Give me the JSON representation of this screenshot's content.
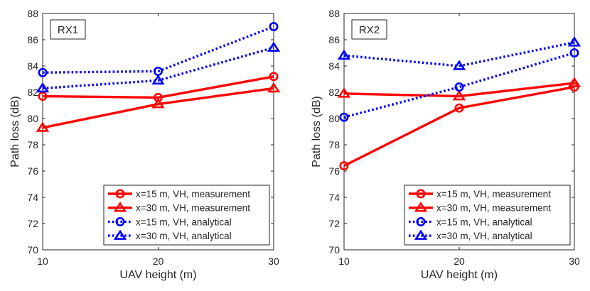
{
  "chart_data": [
    {
      "type": "line",
      "title": "RX1",
      "xlabel": "UAV height (m)",
      "ylabel": "Path loss (dB)",
      "x": [
        10,
        20,
        30
      ],
      "xticks": [
        10,
        20,
        30
      ],
      "xtick_labels": [
        "10",
        "20",
        "30"
      ],
      "ylim": [
        70,
        88
      ],
      "yticks": [
        70,
        72,
        74,
        76,
        78,
        80,
        82,
        84,
        86,
        88
      ],
      "ytick_labels": [
        "70",
        "72",
        "74",
        "76",
        "78",
        "80",
        "82",
        "84",
        "86",
        "88"
      ],
      "grid": false,
      "legend_position": "bottom-right",
      "series": [
        {
          "name": "x=15 m, VH, measurement",
          "values": [
            81.7,
            81.6,
            83.2
          ],
          "color": "#ff0000",
          "style": "solid",
          "marker": "circle"
        },
        {
          "name": "x=30 m, VH, measurement",
          "values": [
            79.3,
            81.1,
            82.3
          ],
          "color": "#ff0000",
          "style": "solid",
          "marker": "triangle"
        },
        {
          "name": "x=15 m, VH, analytical",
          "values": [
            83.5,
            83.6,
            87.0
          ],
          "color": "#0000ff",
          "style": "dotted",
          "marker": "circle"
        },
        {
          "name": "x=30 m, VH, analytical",
          "values": [
            82.3,
            82.9,
            85.4
          ],
          "color": "#0000ff",
          "style": "dotted",
          "marker": "triangle"
        }
      ]
    },
    {
      "type": "line",
      "title": "RX2",
      "xlabel": "UAV height (m)",
      "ylabel": "Path loss (dB)",
      "x": [
        10,
        20,
        30
      ],
      "xticks": [
        10,
        20,
        30
      ],
      "xtick_labels": [
        "10",
        "20",
        "30"
      ],
      "ylim": [
        70,
        88
      ],
      "yticks": [
        70,
        72,
        74,
        76,
        78,
        80,
        82,
        84,
        86,
        88
      ],
      "ytick_labels": [
        "70",
        "72",
        "74",
        "76",
        "78",
        "80",
        "82",
        "84",
        "86",
        "88"
      ],
      "grid": false,
      "legend_position": "bottom-right",
      "series": [
        {
          "name": "x=15 m, VH, measurement",
          "values": [
            76.4,
            80.8,
            82.4
          ],
          "color": "#ff0000",
          "style": "solid",
          "marker": "circle"
        },
        {
          "name": "x=30 m, VH, measurement",
          "values": [
            81.9,
            81.7,
            82.7
          ],
          "color": "#ff0000",
          "style": "solid",
          "marker": "triangle"
        },
        {
          "name": "x=15 m, VH, analytical",
          "values": [
            80.1,
            82.4,
            85.0
          ],
          "color": "#0000ff",
          "style": "dotted",
          "marker": "circle"
        },
        {
          "name": "x=30 m, VH, analytical",
          "values": [
            84.8,
            84.0,
            85.8
          ],
          "color": "#0000ff",
          "style": "dotted",
          "marker": "triangle"
        }
      ]
    }
  ]
}
